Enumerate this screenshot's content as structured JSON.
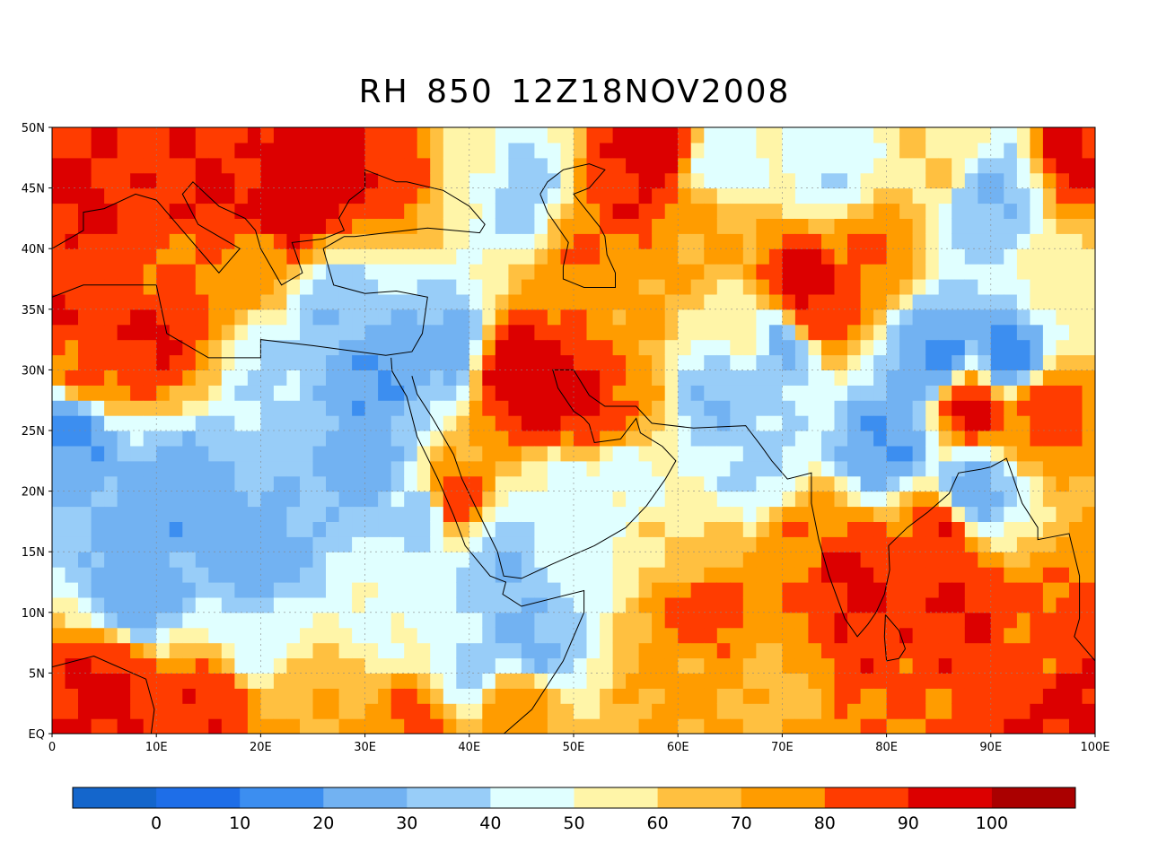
{
  "title": "RH 850 12Z18NOV2008",
  "map": {
    "lon_range": [
      0,
      100
    ],
    "lat_range": [
      0,
      50
    ],
    "lat_ticks": [
      {
        "value": 50,
        "label": "50N"
      },
      {
        "value": 45,
        "label": "45N"
      },
      {
        "value": 40,
        "label": "40N"
      },
      {
        "value": 35,
        "label": "35N"
      },
      {
        "value": 30,
        "label": "30N"
      },
      {
        "value": 25,
        "label": "25N"
      },
      {
        "value": 20,
        "label": "20N"
      },
      {
        "value": 15,
        "label": "15N"
      },
      {
        "value": 10,
        "label": "10N"
      },
      {
        "value": 5,
        "label": "5N"
      },
      {
        "value": 0,
        "label": "EQ"
      }
    ],
    "lon_ticks": [
      {
        "value": 0,
        "label": "0"
      },
      {
        "value": 10,
        "label": "10E"
      },
      {
        "value": 20,
        "label": "20E"
      },
      {
        "value": 30,
        "label": "30E"
      },
      {
        "value": 40,
        "label": "40E"
      },
      {
        "value": 50,
        "label": "50E"
      },
      {
        "value": 60,
        "label": "60E"
      },
      {
        "value": 70,
        "label": "70E"
      },
      {
        "value": 80,
        "label": "80E"
      },
      {
        "value": 90,
        "label": "90E"
      },
      {
        "value": 100,
        "label": "100E"
      }
    ],
    "grid": true
  },
  "colorbar": {
    "colors": [
      "#1466cc",
      "#1e6ee8",
      "#3c8ef0",
      "#72b2f2",
      "#98cdf8",
      "#e0ffff",
      "#fff5a8",
      "#ffc040",
      "#ff9c00",
      "#ff3c00",
      "#dc0000",
      "#aa0000"
    ],
    "labels": [
      "0",
      "10",
      "20",
      "30",
      "40",
      "50",
      "60",
      "70",
      "80",
      "90",
      "100"
    ]
  },
  "features": [
    {
      "lon": 3,
      "lat": 43,
      "rh": 92
    },
    {
      "lon": 8,
      "lat": 46,
      "rh": 88
    },
    {
      "lon": 15,
      "lat": 45,
      "rh": 90
    },
    {
      "lon": 22,
      "lat": 43,
      "rh": 95
    },
    {
      "lon": 28,
      "lat": 48,
      "rh": 95
    },
    {
      "lon": 24,
      "lat": 47,
      "rh": 95
    },
    {
      "lon": 18,
      "lat": 49,
      "rh": 88
    },
    {
      "lon": 33,
      "lat": 48,
      "rh": 85
    },
    {
      "lon": 0,
      "lat": 35,
      "rh": 90
    },
    {
      "lon": 9,
      "lat": 33,
      "rh": 92
    },
    {
      "lon": 4,
      "lat": 30,
      "rh": 82
    },
    {
      "lon": 12,
      "lat": 38,
      "rh": 80
    },
    {
      "lon": 20,
      "lat": 39,
      "rh": 75
    },
    {
      "lon": 3,
      "lat": 38,
      "rh": 84
    },
    {
      "lon": 2,
      "lat": 25,
      "rh": 18
    },
    {
      "lon": 12,
      "lat": 20,
      "rh": 22
    },
    {
      "lon": 8,
      "lat": 12,
      "rh": 25
    },
    {
      "lon": 20,
      "lat": 14,
      "rh": 24
    },
    {
      "lon": 30,
      "lat": 22,
      "rh": 26
    },
    {
      "lon": 30,
      "lat": 29,
      "rh": 20
    },
    {
      "lon": 22,
      "lat": 30,
      "rh": 38
    },
    {
      "lon": 38,
      "lat": 32,
      "rh": 25
    },
    {
      "lon": 27,
      "lat": 35,
      "rh": 32
    },
    {
      "lon": 36,
      "lat": 18,
      "rh": 32
    },
    {
      "lon": 43,
      "lat": 14,
      "rh": 30
    },
    {
      "lon": 46,
      "lat": 8,
      "rh": 28
    },
    {
      "lon": 50,
      "lat": 20,
      "rh": 45
    },
    {
      "lon": 55,
      "lat": 22,
      "rh": 45
    },
    {
      "lon": 44,
      "lat": 30,
      "rh": 96
    },
    {
      "lon": 48,
      "lat": 28,
      "rh": 94
    },
    {
      "lon": 52,
      "lat": 27,
      "rh": 92
    },
    {
      "lon": 54,
      "lat": 26,
      "rh": 80
    },
    {
      "lon": 38,
      "lat": 19,
      "rh": 88
    },
    {
      "lon": 52,
      "lat": 40,
      "rh": 80
    },
    {
      "lon": 58,
      "lat": 48,
      "rh": 95
    },
    {
      "lon": 56,
      "lat": 45,
      "rh": 90
    },
    {
      "lon": 62,
      "lat": 42,
      "rh": 72
    },
    {
      "lon": 55,
      "lat": 36,
      "rh": 72
    },
    {
      "lon": 64,
      "lat": 28,
      "rh": 30
    },
    {
      "lon": 70,
      "lat": 32,
      "rh": 28
    },
    {
      "lon": 68,
      "lat": 22,
      "rh": 38
    },
    {
      "lon": 80,
      "lat": 24,
      "rh": 20
    },
    {
      "lon": 85,
      "lat": 31,
      "rh": 18
    },
    {
      "lon": 92,
      "lat": 31,
      "rh": 15
    },
    {
      "lon": 88,
      "lat": 20,
      "rh": 25
    },
    {
      "lon": 75,
      "lat": 46,
      "rh": 42
    },
    {
      "lon": 90,
      "lat": 44,
      "rh": 30
    },
    {
      "lon": 72,
      "lat": 37,
      "rh": 96
    },
    {
      "lon": 78,
      "lat": 40,
      "rh": 80
    },
    {
      "lon": 73,
      "lat": 35,
      "rh": 88
    },
    {
      "lon": 96,
      "lat": 37,
      "rh": 55
    },
    {
      "lon": 88,
      "lat": 27,
      "rh": 92
    },
    {
      "lon": 95,
      "lat": 27,
      "rh": 85
    },
    {
      "lon": 99,
      "lat": 48,
      "rh": 92
    },
    {
      "lon": 62,
      "lat": 10,
      "rh": 85
    },
    {
      "lon": 60,
      "lat": 5,
      "rh": 72
    },
    {
      "lon": 76,
      "lat": 13,
      "rh": 92
    },
    {
      "lon": 78,
      "lat": 8,
      "rh": 88
    },
    {
      "lon": 87,
      "lat": 10,
      "rh": 90
    },
    {
      "lon": 85,
      "lat": 17,
      "rh": 88
    },
    {
      "lon": 72,
      "lat": 16,
      "rh": 78
    },
    {
      "lon": 95,
      "lat": 8,
      "rh": 82
    },
    {
      "lon": 98,
      "lat": 2,
      "rh": 92
    },
    {
      "lon": 80,
      "lat": 2,
      "rh": 80
    },
    {
      "lon": 70,
      "lat": 3,
      "rh": 68
    },
    {
      "lon": 5,
      "lat": 4,
      "rh": 92
    },
    {
      "lon": 15,
      "lat": 2,
      "rh": 88
    },
    {
      "lon": 25,
      "lat": 3,
      "rh": 70
    },
    {
      "lon": 35,
      "lat": 1,
      "rh": 82
    },
    {
      "lon": 44,
      "lat": 2,
      "rh": 76
    },
    {
      "lon": 32,
      "lat": 10,
      "rh": 48
    },
    {
      "lon": 40,
      "lat": 5,
      "rh": 38
    },
    {
      "lon": 20,
      "lat": 8,
      "rh": 45
    },
    {
      "lon": 60,
      "lat": 15,
      "rh": 60
    },
    {
      "lon": 66,
      "lat": 33,
      "rh": 55
    },
    {
      "lon": 45,
      "lat": 45,
      "rh": 35
    },
    {
      "lon": 40,
      "lat": 48,
      "rh": 55
    },
    {
      "lon": 64,
      "lat": 47,
      "rh": 45
    },
    {
      "lon": 85,
      "lat": 48,
      "rh": 60
    },
    {
      "lon": 50,
      "lat": 15,
      "rh": 45
    }
  ]
}
